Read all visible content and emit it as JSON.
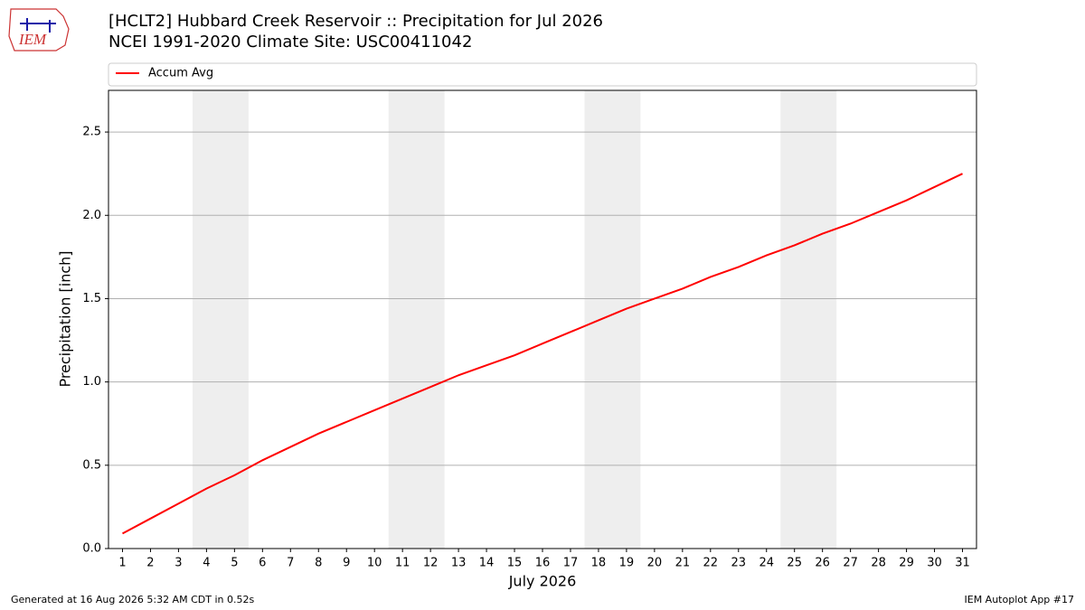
{
  "logo_text": "IEM",
  "footer_left": "Generated at 16 Aug 2026 5:32 AM CDT in 0.52s",
  "footer_right": "IEM Autoplot App #17",
  "chart_data": {
    "type": "line",
    "title": "[HCLT2] Hubbard Creek Reservoir :: Precipitation for Jul 2026",
    "subtitle": "NCEI 1991-2020 Climate Site: USC00411042",
    "x_label": "July 2026",
    "y_label": "Precipitation [inch]",
    "x": [
      1,
      2,
      3,
      4,
      5,
      6,
      7,
      8,
      9,
      10,
      11,
      12,
      13,
      14,
      15,
      16,
      17,
      18,
      19,
      20,
      21,
      22,
      23,
      24,
      25,
      26,
      27,
      28,
      29,
      30,
      31
    ],
    "series": [
      {
        "name": "Accum Avg",
        "color": "#ff0000",
        "values": [
          0.09,
          0.18,
          0.27,
          0.36,
          0.44,
          0.53,
          0.61,
          0.69,
          0.76,
          0.83,
          0.9,
          0.97,
          1.04,
          1.1,
          1.16,
          1.23,
          1.3,
          1.37,
          1.44,
          1.5,
          1.56,
          1.63,
          1.69,
          1.76,
          1.82,
          1.89,
          1.95,
          2.02,
          2.09,
          2.17,
          2.25
        ]
      }
    ],
    "weekend_spans": [
      [
        3.5,
        5.5
      ],
      [
        10.5,
        12.5
      ],
      [
        17.5,
        19.5
      ],
      [
        24.5,
        26.5
      ]
    ],
    "span_color": "#eeeeee",
    "xlim": [
      0.5,
      31.5
    ],
    "xticks": [
      1,
      2,
      3,
      4,
      5,
      6,
      7,
      8,
      9,
      10,
      11,
      12,
      13,
      14,
      15,
      16,
      17,
      18,
      19,
      20,
      21,
      22,
      23,
      24,
      25,
      26,
      27,
      28,
      29,
      30,
      31
    ],
    "ylim": [
      0,
      2.75
    ],
    "yticks": [
      {
        "value": 0,
        "label": "0.0"
      },
      0.5,
      {
        "value": 1,
        "label": "1.0"
      },
      1.5,
      {
        "value": 2,
        "label": "2.0"
      },
      2.5
    ],
    "grid": true,
    "legend": "top"
  }
}
